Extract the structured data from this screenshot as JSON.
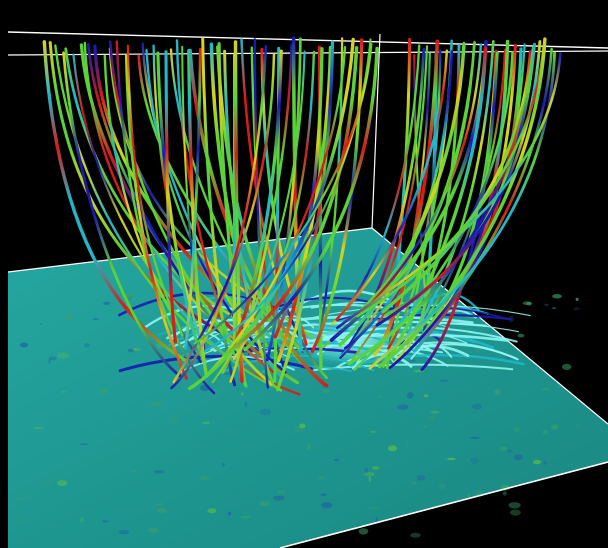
{
  "scene": {
    "description_free": true,
    "colors": {
      "background": "#000000",
      "photosphere": "#1f9b95",
      "photosphere_dark": "#176f6c",
      "box_edge": "#ffffff",
      "tube_low": "#1a1ab0",
      "tube_mid_low": "#1fb7c9",
      "tube_mid": "#5cd23a",
      "tube_mid_high": "#d6d21e",
      "tube_high": "#d61c1c",
      "core": "#8ff5f0"
    }
  }
}
